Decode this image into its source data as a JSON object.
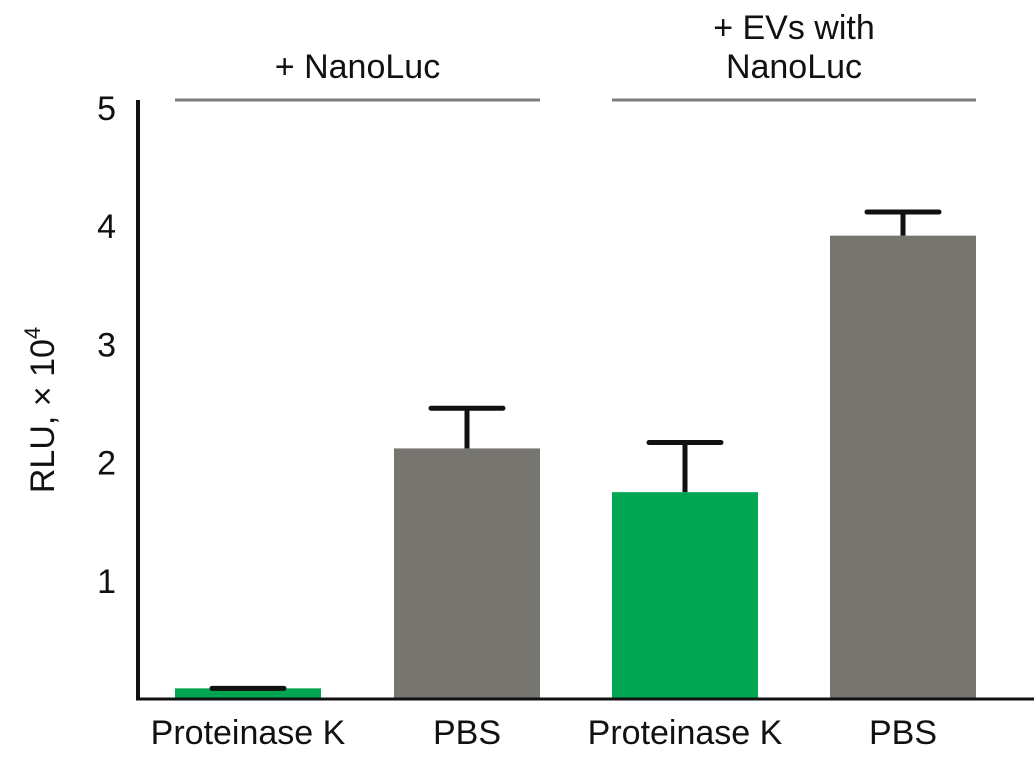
{
  "chart_data": {
    "type": "bar",
    "categories": [
      "Proteinase K",
      "PBS",
      "Proteinase K",
      "PBS"
    ],
    "values": [
      0.09,
      2.12,
      1.75,
      3.92
    ],
    "errors": [
      0.0,
      0.34,
      0.42,
      0.2
    ],
    "bar_colors": [
      "#00A651",
      "#767570",
      "#00A651",
      "#767570"
    ],
    "groups": [
      {
        "label": "+ NanoLuc",
        "label_lines": [
          "+ NanoLuc"
        ],
        "categories": [
          0,
          1
        ]
      },
      {
        "label": "+ EVs with NanoLuc",
        "label_lines": [
          "+ EVs with",
          "NanoLuc"
        ],
        "categories": [
          2,
          3
        ]
      }
    ],
    "ylabel": "RLU, × 10",
    "ylabel_superscript": "4",
    "yticks": [
      1,
      2,
      3,
      4,
      5
    ],
    "ytick_labels": [
      "1",
      "2",
      "3",
      "4",
      "5"
    ],
    "ylim": [
      0,
      5
    ],
    "xlabel": "",
    "title": "",
    "grid": false,
    "legend": false
  },
  "colors": {
    "green": "#00A651",
    "gray": "#767570",
    "axis": "#111111",
    "group_line": "#7d7d7d"
  }
}
